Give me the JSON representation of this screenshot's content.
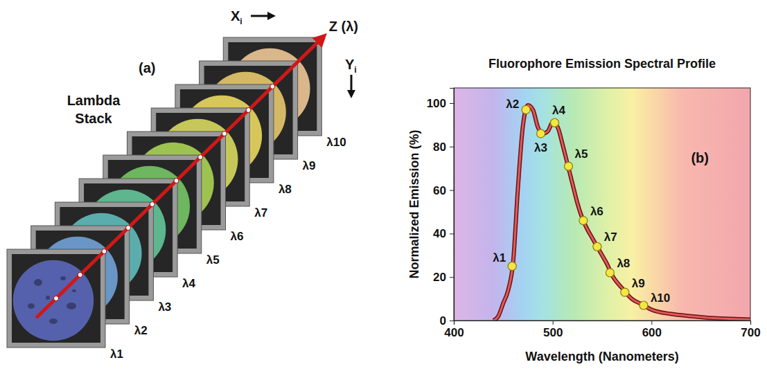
{
  "chart_data": {
    "type": "line",
    "title": "Fluorophore Emission Spectral Profile",
    "x_label": "Wavelength (Nanometers)",
    "y_label": "Normalized Emission (%)",
    "xlim": [
      400,
      700
    ],
    "xticks": [
      400,
      500,
      600,
      700
    ],
    "ylim": [
      0,
      107
    ],
    "yticks": [
      0,
      20,
      40,
      60,
      80,
      100
    ],
    "grid": false,
    "annotations": [
      {
        "text": "(b)"
      }
    ],
    "series": [
      {
        "type": "line",
        "color": "#e05a5a",
        "x": [
          440,
          445,
          450,
          455,
          460,
          465,
          470,
          475,
          480,
          485,
          490,
          495,
          500,
          505,
          510,
          515,
          520,
          525,
          530,
          535,
          540,
          545,
          550,
          555,
          560,
          570,
          580,
          590,
          600,
          620,
          640,
          660,
          680,
          700
        ],
        "values": [
          0,
          2,
          8,
          14,
          27,
          62,
          90,
          99,
          97,
          89,
          86,
          87,
          91,
          89,
          81,
          72,
          63,
          54,
          47,
          42,
          38,
          34,
          30,
          26,
          21,
          15,
          10,
          7.5,
          5,
          3,
          2,
          1.2,
          0.8,
          0.5
        ]
      },
      {
        "type": "scatter",
        "color": "#f5e642",
        "marker": "circle",
        "x": [
          459,
          473,
          488,
          502,
          516,
          531,
          545,
          558,
          573,
          592
        ],
        "values": [
          25,
          97,
          86,
          91,
          71,
          46,
          34,
          22,
          13,
          7
        ],
        "labels": [
          "λ1",
          "λ2",
          "λ3",
          "λ4",
          "λ5",
          "λ6",
          "λ7",
          "λ8",
          "λ9",
          "λ10"
        ]
      }
    ]
  },
  "diagram": {
    "label": "(a)",
    "title": "Lambda Stack",
    "x_axis": {
      "text": "X",
      "subscript": "i"
    },
    "y_axis": {
      "text": "Y",
      "subscript": "i"
    },
    "z_axis": "Z (λ)",
    "slices": [
      {
        "label": "λ1",
        "color": "#5a66b8"
      },
      {
        "label": "λ2",
        "color": "#6f9fd2"
      },
      {
        "label": "λ3",
        "color": "#5fb9b8"
      },
      {
        "label": "λ4",
        "color": "#62c296"
      },
      {
        "label": "λ5",
        "color": "#74c264"
      },
      {
        "label": "λ6",
        "color": "#a8cf54"
      },
      {
        "label": "λ7",
        "color": "#d3d65c"
      },
      {
        "label": "λ8",
        "color": "#e6d45e"
      },
      {
        "label": "λ9",
        "color": "#e3c46a"
      },
      {
        "label": "λ10",
        "color": "#e9c393"
      }
    ]
  }
}
